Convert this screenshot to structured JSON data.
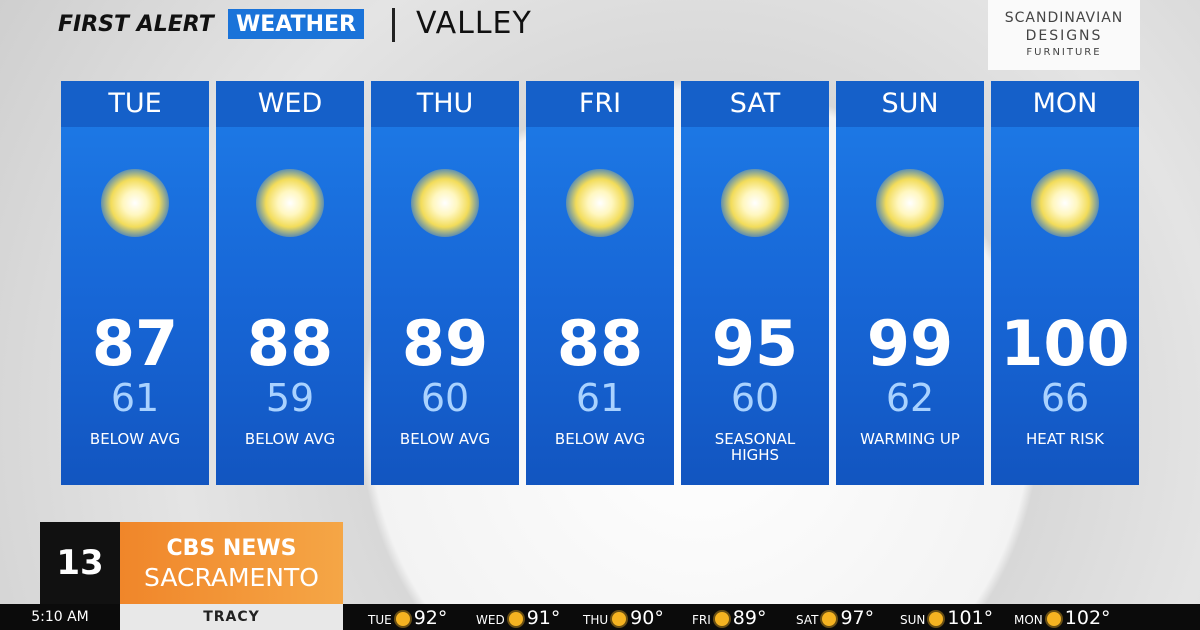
{
  "header": {
    "brand_first": "FIRST ALERT",
    "brand_second": "WEATHER",
    "region": "VALLEY"
  },
  "sponsor": {
    "line1": "SCANDINAVIAN",
    "line2": "DESIGNS",
    "line3": "FURNITURE"
  },
  "days": [
    {
      "day": "TUE",
      "high": 87,
      "low": 61,
      "note": "BELOW AVG"
    },
    {
      "day": "WED",
      "high": 88,
      "low": 59,
      "note": "BELOW AVG"
    },
    {
      "day": "THU",
      "high": 89,
      "low": 60,
      "note": "BELOW AVG"
    },
    {
      "day": "FRI",
      "high": 88,
      "low": 61,
      "note": "BELOW AVG"
    },
    {
      "day": "SAT",
      "high": 95,
      "low": 60,
      "note": "SEASONAL HIGHS"
    },
    {
      "day": "SUN",
      "high": 99,
      "low": 62,
      "note": "WARMING UP"
    },
    {
      "day": "MON",
      "high": 100,
      "low": 66,
      "note": "HEAT RISK"
    }
  ],
  "logo": {
    "channel": "13",
    "network": "CBS NEWS",
    "city": "SACRAMENTO"
  },
  "ticker": {
    "time": "5:10 AM",
    "location": "TRACY",
    "items": [
      {
        "day": "TUE",
        "temp": "92°"
      },
      {
        "day": "WED",
        "temp": "91°"
      },
      {
        "day": "THU",
        "temp": "90°"
      },
      {
        "day": "FRI",
        "temp": "89°"
      },
      {
        "day": "SAT",
        "temp": "97°"
      },
      {
        "day": "SUN",
        "temp": "101°"
      },
      {
        "day": "MON",
        "temp": "102°"
      }
    ]
  }
}
